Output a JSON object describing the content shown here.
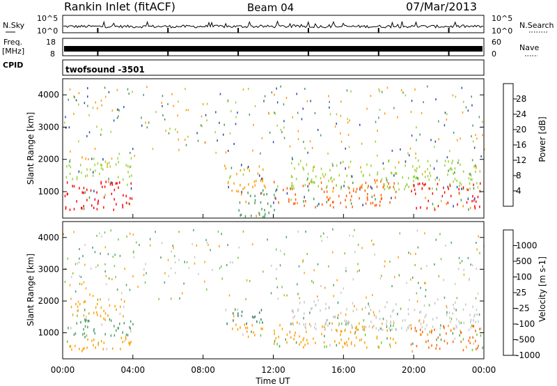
{
  "header": {
    "station": "Rankin Inlet (fitACF)",
    "beam": "Beam 04",
    "date": "07/Mar/2013"
  },
  "chart_data": [
    {
      "type": "line",
      "panel": "noise",
      "left_label": "N.Sky",
      "right_label": "N.Search",
      "left_ticks": [
        "10^5",
        "10^0"
      ],
      "right_ticks": [
        "10^5",
        "10^0"
      ]
    },
    {
      "type": "bar",
      "panel": "frequency",
      "left_label_top": "Freq.",
      "left_label_bottom": "[MHz]",
      "right_label": "Nave",
      "left_ticks": [
        18,
        8
      ],
      "right_ticks": [
        60,
        0
      ],
      "freq_mhz_approx": 10.5
    },
    {
      "type": "table",
      "panel": "cpid",
      "label": "CPID",
      "value": "twofsound  -3501"
    },
    {
      "type": "heatmap",
      "panel": "power",
      "ylabel": "Slant Range [km]",
      "ylim": [
        180,
        4500
      ],
      "yticks": [
        1000,
        2000,
        3000,
        4000
      ],
      "colorbar_label": "Power [dB]",
      "colorbar_ticks": [
        "28",
        "24",
        "20",
        "16",
        "12",
        "8",
        "4"
      ],
      "colorbar_colors": [
        "#ff0000",
        "#ff5a00",
        "#ff9a00",
        "#f0c800",
        "#9ad23c",
        "#4a9a5a",
        "#2a4aa0",
        "#0000ff"
      ],
      "regions": [
        {
          "t0": 0.1,
          "t1": 4.0,
          "r0": 450,
          "r1": 1400,
          "level": 28
        },
        {
          "t0": 0.1,
          "t1": 4.0,
          "r0": 1400,
          "r1": 2100,
          "level": 12
        },
        {
          "t0": 9.2,
          "t1": 11.6,
          "r0": 950,
          "r1": 1900,
          "level": 20
        },
        {
          "t0": 10.0,
          "t1": 12.2,
          "r0": 250,
          "r1": 1100,
          "level": 8
        },
        {
          "t0": 12.0,
          "t1": 19.0,
          "r0": 550,
          "r1": 1400,
          "level": 24
        },
        {
          "t0": 13.0,
          "t1": 23.8,
          "r0": 1100,
          "r1": 2000,
          "level": 12
        },
        {
          "t0": 19.8,
          "t1": 23.9,
          "r0": 450,
          "r1": 1300,
          "level": 28
        }
      ]
    },
    {
      "type": "heatmap",
      "panel": "velocity",
      "ylabel": "Slant Range [km]",
      "ylim": [
        180,
        4500
      ],
      "yticks": [
        1000,
        2000,
        3000,
        4000
      ],
      "xlabel": "Time UT",
      "xticks": [
        "00:00",
        "04:00",
        "08:00",
        "12:00",
        "16:00",
        "20:00",
        "00:00"
      ],
      "xlim_hours": [
        0,
        24
      ],
      "colorbar_label": "Velocity [m s-1]",
      "colorbar_ticks": [
        "1000",
        "500",
        "100",
        "25",
        "-25",
        "-100",
        "-500",
        "-1000"
      ],
      "colorbar_colors": [
        "#1e3ca0",
        "#3a7a6e",
        "#4ea064",
        "#6ec83c",
        "#c8c8c8",
        "#ffa000",
        "#ff6400",
        "#ff0000"
      ],
      "regions": [
        {
          "t0": 0.1,
          "t1": 4.0,
          "r0": 450,
          "r1": 900,
          "level": -100
        },
        {
          "t0": 0.1,
          "t1": 4.0,
          "r0": 900,
          "r1": 1500,
          "level": 100
        },
        {
          "t0": 0.3,
          "t1": 3.5,
          "r0": 1500,
          "r1": 2100,
          "level": -100
        },
        {
          "t0": 9.2,
          "t1": 11.6,
          "r0": 1300,
          "r1": 1800,
          "level": 500
        },
        {
          "t0": 9.2,
          "t1": 11.6,
          "r0": 900,
          "r1": 1300,
          "level": -100
        },
        {
          "t0": 12.0,
          "t1": 19.0,
          "r0": 550,
          "r1": 1400,
          "level": -100
        },
        {
          "t0": 13.0,
          "t1": 23.8,
          "r0": 1100,
          "r1": 2000,
          "level": -25
        },
        {
          "t0": 19.8,
          "t1": 23.9,
          "r0": 450,
          "r1": 1300,
          "level": -500
        }
      ]
    }
  ]
}
